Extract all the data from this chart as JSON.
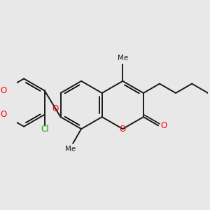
{
  "background_color": "#e8e8e8",
  "bond_color": "#1a1a1a",
  "oxygen_color": "#ff0000",
  "chlorine_color": "#00aa00",
  "bond_lw": 1.4,
  "figsize": [
    3.0,
    3.0
  ],
  "dpi": 100,
  "xlim": [
    -2.5,
    5.5
  ],
  "ylim": [
    -2.5,
    2.5
  ]
}
